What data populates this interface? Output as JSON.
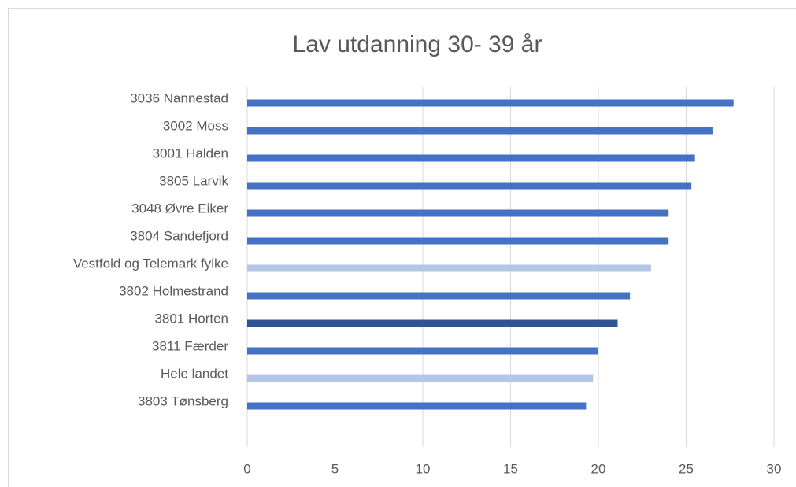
{
  "chart_data": {
    "type": "bar",
    "orientation": "horizontal",
    "title": "Lav utdanning 30- 39 år",
    "categories": [
      "3036 Nannestad",
      "3002 Moss",
      "3001 Halden",
      "3805 Larvik",
      "3048 Øvre Eiker",
      "3804 Sandefjord",
      "Vestfold og Telemark fylke",
      "3802 Holmestrand",
      "3801 Horten",
      "3811 Færder",
      "Hele landet",
      "3803 Tønsberg"
    ],
    "values": [
      27.7,
      26.5,
      25.5,
      25.3,
      24.0,
      24.0,
      23.0,
      21.8,
      21.1,
      20.0,
      19.7,
      19.3
    ],
    "colors": [
      "#4472c4",
      "#4472c4",
      "#4472c4",
      "#4472c4",
      "#4472c4",
      "#4472c4",
      "#b4c7e7",
      "#4472c4",
      "#2f5597",
      "#4472c4",
      "#b4c7e7",
      "#4472c4"
    ],
    "xlim": [
      0,
      30
    ],
    "xticks": [
      0,
      5,
      10,
      15,
      20,
      25,
      30
    ],
    "grid": true
  }
}
